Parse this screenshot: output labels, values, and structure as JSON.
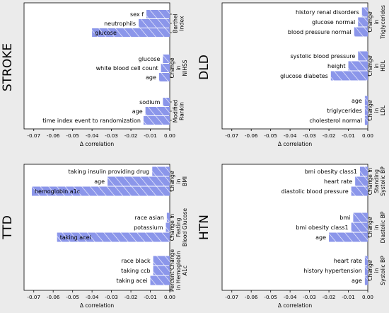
{
  "panel_colors": {
    "background": "#ebebeb",
    "plot_bg": "#ffffff",
    "bar": "#8b96ea",
    "hatch": "#ffffff",
    "text": "#000000"
  },
  "chart_data": [
    {
      "type": "bar",
      "orientation": "horizontal",
      "row_title": "STROKE",
      "xlabel": "Δ correlation",
      "xlim": [
        -0.075,
        0.0
      ],
      "xticks": [
        "-0.07",
        "-0.06",
        "-0.05",
        "-0.04",
        "-0.03",
        "-0.02",
        "-0.01",
        "0.00"
      ],
      "xtick_values": [
        -0.07,
        -0.06,
        -0.05,
        -0.04,
        -0.03,
        -0.02,
        -0.01,
        0.0
      ],
      "groups": [
        {
          "label": "Barthel Index",
          "label_lines": [
            "Barthel",
            "Index"
          ],
          "bars": [
            {
              "label": "sex f",
              "value": -0.012,
              "highlight": false
            },
            {
              "label": "neutrophils",
              "value": -0.016,
              "highlight": false
            },
            {
              "label": "glucose",
              "value": -0.04,
              "highlight": true
            }
          ]
        },
        {
          "label": "Change in NIHSS",
          "label_lines": [
            "Change",
            "in",
            "NIHSS"
          ],
          "bars": [
            {
              "label": "glucose",
              "value": -0.0035,
              "highlight": false
            },
            {
              "label": "white blood cell count",
              "value": -0.0045,
              "highlight": false
            },
            {
              "label": "age",
              "value": -0.0055,
              "highlight": false
            }
          ]
        },
        {
          "label": "Modified Rankin",
          "label_lines": [
            "Modified",
            "Rankin"
          ],
          "bars": [
            {
              "label": "sodium",
              "value": -0.0035,
              "highlight": false
            },
            {
              "label": "age",
              "value": -0.0125,
              "highlight": false
            },
            {
              "label": "time index event to randomization",
              "value": -0.0135,
              "highlight": false
            }
          ]
        }
      ]
    },
    {
      "type": "bar",
      "orientation": "horizontal",
      "row_title": "DLD",
      "xlabel": "Δ correlation",
      "xlim": [
        -0.075,
        0.0
      ],
      "xticks": [
        "-0.07",
        "-0.06",
        "-0.05",
        "-0.04",
        "-0.03",
        "-0.02",
        "-0.01",
        "0.00"
      ],
      "xtick_values": [
        -0.07,
        -0.06,
        -0.05,
        -0.04,
        -0.03,
        -0.02,
        -0.01,
        0.0
      ],
      "groups": [
        {
          "label": "Change in Triglycerides",
          "label_lines": [
            "Change",
            "in",
            "Triglycerides"
          ],
          "bars": [
            {
              "label": "history renal disorders",
              "value": -0.003,
              "highlight": false
            },
            {
              "label": "glucose normal",
              "value": -0.005,
              "highlight": false
            },
            {
              "label": "blood pressure normal",
              "value": -0.007,
              "highlight": false
            }
          ]
        },
        {
          "label": "Change in HDL",
          "label_lines": [
            "Change",
            "in",
            "HDL"
          ],
          "bars": [
            {
              "label": "systolic blood pressure",
              "value": -0.005,
              "highlight": false
            },
            {
              "label": "height",
              "value": -0.01,
              "highlight": false
            },
            {
              "label": "glucose diabetes",
              "value": -0.019,
              "highlight": false
            }
          ]
        },
        {
          "label": "Change in LDL",
          "label_lines": [
            "Change",
            "in",
            "LDL"
          ],
          "bars": [
            {
              "label": "age",
              "value": -0.0015,
              "highlight": false
            },
            {
              "label": "triglycerides",
              "value": -0.0015,
              "highlight": false
            },
            {
              "label": "cholesterol normal",
              "value": -0.0015,
              "highlight": false
            }
          ]
        }
      ]
    },
    {
      "type": "bar",
      "orientation": "horizontal",
      "row_title": "TTD",
      "xlabel": "Δ correlation",
      "xlim": [
        -0.075,
        0.0
      ],
      "xticks": [
        "-0.07",
        "-0.06",
        "-0.05",
        "-0.04",
        "-0.03",
        "-0.02",
        "-0.01",
        "0.00"
      ],
      "xtick_values": [
        -0.07,
        -0.06,
        -0.05,
        -0.04,
        -0.03,
        -0.02,
        -0.01,
        0.0
      ],
      "groups": [
        {
          "label": "Change in BMI",
          "label_lines": [
            "Change",
            "in",
            "BMI"
          ],
          "bars": [
            {
              "label": "taking insulin providing drug",
              "value": -0.009,
              "highlight": false
            },
            {
              "label": "age",
              "value": -0.032,
              "highlight": false
            },
            {
              "label": "hemoglobin a1c",
              "value": -0.071,
              "highlight": true
            }
          ]
        },
        {
          "label": "Change in Fasting Blood Glucose",
          "label_lines": [
            "Change in",
            "Fasting",
            "Blood Glucose"
          ],
          "bars": [
            {
              "label": "race asian",
              "value": -0.0015,
              "highlight": false
            },
            {
              "label": "potassium",
              "value": -0.002,
              "highlight": false
            },
            {
              "label": "taking acei",
              "value": -0.058,
              "highlight": true
            }
          ]
        },
        {
          "label": "Percent Change in Hemoglobin A1c",
          "label_lines": [
            "Percent Change",
            "in Hemoglobin",
            "A1c"
          ],
          "bars": [
            {
              "label": "race black",
              "value": -0.0085,
              "highlight": false
            },
            {
              "label": "taking ccb",
              "value": -0.0085,
              "highlight": false
            },
            {
              "label": "taking acei",
              "value": -0.01,
              "highlight": false
            }
          ]
        }
      ]
    },
    {
      "type": "bar",
      "orientation": "horizontal",
      "row_title": "HTN",
      "xlabel": "Δ correlation",
      "xlim": [
        -0.075,
        0.0
      ],
      "xticks": [
        "-0.07",
        "-0.06",
        "-0.05",
        "-0.04",
        "-0.03",
        "-0.02",
        "-0.01",
        "0.00"
      ],
      "xtick_values": [
        -0.07,
        -0.06,
        -0.05,
        -0.04,
        -0.03,
        -0.02,
        -0.01,
        0.0
      ],
      "groups": [
        {
          "label": "Change in Standing Systolic BP",
          "label_lines": [
            "Change in",
            "Standing",
            "Systolic BP"
          ],
          "bars": [
            {
              "label": "bmi obesity class1",
              "value": -0.004,
              "highlight": false
            },
            {
              "label": "heart rate",
              "value": -0.0065,
              "highlight": false
            },
            {
              "label": "diastolic blood pressure",
              "value": -0.0085,
              "highlight": false
            }
          ]
        },
        {
          "label": "Change in Diastolic BP",
          "label_lines": [
            "Change",
            "in",
            "Diastolic BP"
          ],
          "bars": [
            {
              "label": "bmi",
              "value": -0.0075,
              "highlight": false
            },
            {
              "label": "bmi obesity class1",
              "value": -0.0085,
              "highlight": false
            },
            {
              "label": "age",
              "value": -0.02,
              "highlight": false
            }
          ]
        },
        {
          "label": "Change in Systolic BP",
          "label_lines": [
            "Change",
            "in",
            "Systolic BP"
          ],
          "bars": [
            {
              "label": "heart rate",
              "value": -0.0015,
              "highlight": false
            },
            {
              "label": "history hypertension",
              "value": -0.0015,
              "highlight": false
            },
            {
              "label": "age",
              "value": -0.0015,
              "highlight": false
            }
          ]
        }
      ]
    }
  ]
}
